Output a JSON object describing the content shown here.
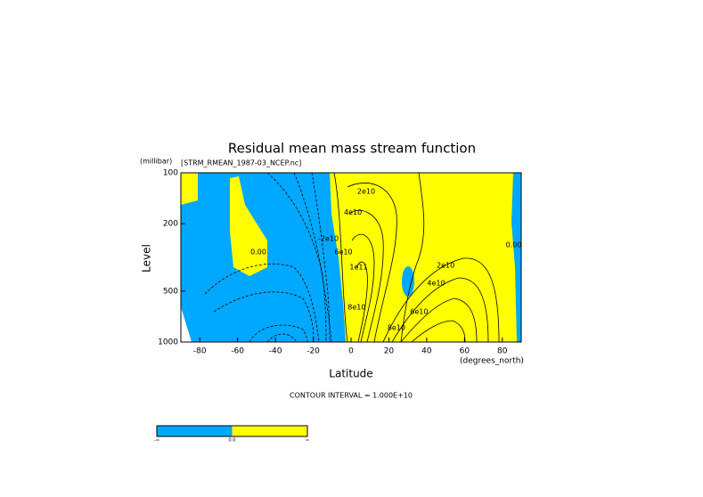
{
  "chart_data": {
    "type": "contour",
    "title": "Residual mean mass stream function",
    "subtitle": "[STRM_RMEAN_1987-03_NCEP.nc]",
    "y_units": "(millibar)",
    "ylabel": "Level",
    "xlabel": "Latitude",
    "x_units": "(degrees_north)",
    "note": "CONTOUR INTERVAL = 1.000E+10",
    "xlim": [
      -90,
      90
    ],
    "xticks": [
      -80,
      -60,
      -40,
      -20,
      0,
      20,
      40,
      60,
      80
    ],
    "ylim": [
      1000,
      100
    ],
    "yticks": [
      100,
      200,
      500,
      1000
    ],
    "log_y": true,
    "negative_color": "#00a8ff",
    "positive_color": "#ffff00",
    "contour_labels": [
      {
        "text": "0.00",
        "x": -49,
        "y": 294
      },
      {
        "text": "-2e10",
        "x": -12,
        "y": 245
      },
      {
        "text": "2e10",
        "x": 8,
        "y": 129
      },
      {
        "text": "4e10",
        "x": 1,
        "y": 171
      },
      {
        "text": "6e10",
        "x": -4,
        "y": 294
      },
      {
        "text": "1e11",
        "x": 4,
        "y": 361
      },
      {
        "text": "8e10",
        "x": 3,
        "y": 623
      },
      {
        "text": "2e10",
        "x": 50,
        "y": 353
      },
      {
        "text": "4e10",
        "x": 45,
        "y": 450
      },
      {
        "text": "6e10",
        "x": 36,
        "y": 662
      },
      {
        "text": "8e10",
        "x": 24,
        "y": 824
      },
      {
        "text": "0.00",
        "x": 86,
        "y": 267
      }
    ],
    "colorbar": {
      "labels": [
        "-∞",
        "0.0",
        "∞"
      ]
    }
  }
}
